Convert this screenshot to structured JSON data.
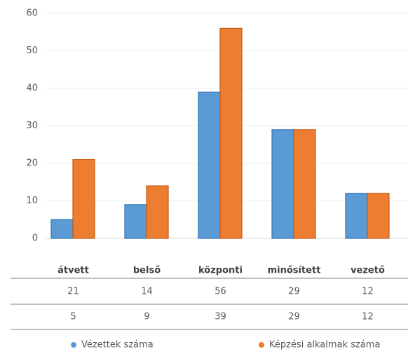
{
  "chart_data": {
    "type": "bar",
    "categories": [
      "átvett",
      "belső",
      "központi",
      "minősített",
      "vezető"
    ],
    "series": [
      {
        "name": "Vézettek száma",
        "color": "#5b9bd5",
        "values": [
          5,
          9,
          39,
          29,
          12
        ]
      },
      {
        "name": "Képzési alkalmak száma",
        "color": "#ed7d31",
        "values": [
          21,
          14,
          56,
          29,
          12
        ]
      }
    ],
    "ylim": [
      0,
      60
    ],
    "yticks": [
      0,
      10,
      20,
      30,
      40,
      50,
      60
    ],
    "grid": true
  }
}
